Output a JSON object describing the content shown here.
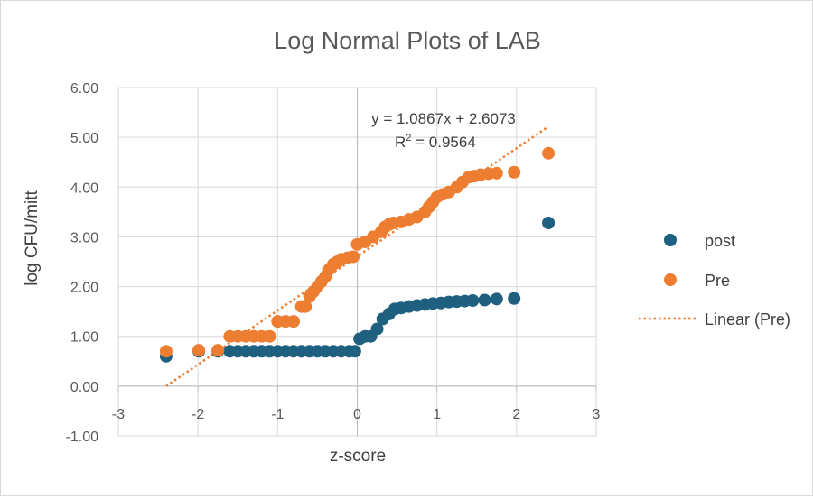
{
  "chart_data": {
    "type": "scatter",
    "title": "Log Normal Plots of LAB",
    "xlabel": "z-score",
    "ylabel": "log CFU/mitt",
    "xlim": [
      -3,
      3
    ],
    "ylim": [
      -1,
      6
    ],
    "x_ticks": [
      "-3",
      "-2",
      "-1",
      "0",
      "1",
      "2",
      "3"
    ],
    "y_ticks": [
      "-1.00",
      "0.00",
      "1.00",
      "2.00",
      "3.00",
      "4.00",
      "5.00",
      "6.00"
    ],
    "grid": true,
    "legend_position": "right",
    "series": [
      {
        "name": "post",
        "color": "#1f5f7f",
        "points": [
          [
            -2.4,
            0.6
          ],
          [
            -1.99,
            0.7
          ],
          [
            -1.75,
            0.7
          ],
          [
            -1.6,
            0.7
          ],
          [
            -1.5,
            0.7
          ],
          [
            -1.4,
            0.7
          ],
          [
            -1.3,
            0.7
          ],
          [
            -1.2,
            0.7
          ],
          [
            -1.1,
            0.7
          ],
          [
            -1.0,
            0.7
          ],
          [
            -0.9,
            0.7
          ],
          [
            -0.8,
            0.7
          ],
          [
            -0.7,
            0.7
          ],
          [
            -0.6,
            0.7
          ],
          [
            -0.5,
            0.7
          ],
          [
            -0.4,
            0.7
          ],
          [
            -0.3,
            0.7
          ],
          [
            -0.2,
            0.7
          ],
          [
            -0.1,
            0.7
          ],
          [
            -0.03,
            0.7
          ],
          [
            0.03,
            0.95
          ],
          [
            0.1,
            1.0
          ],
          [
            0.17,
            1.0
          ],
          [
            0.25,
            1.15
          ],
          [
            0.32,
            1.35
          ],
          [
            0.4,
            1.45
          ],
          [
            0.47,
            1.55
          ],
          [
            0.55,
            1.57
          ],
          [
            0.65,
            1.6
          ],
          [
            0.75,
            1.62
          ],
          [
            0.85,
            1.64
          ],
          [
            0.95,
            1.66
          ],
          [
            1.05,
            1.67
          ],
          [
            1.15,
            1.69
          ],
          [
            1.25,
            1.7
          ],
          [
            1.35,
            1.71
          ],
          [
            1.45,
            1.72
          ],
          [
            1.6,
            1.73
          ],
          [
            1.75,
            1.75
          ],
          [
            1.97,
            1.76
          ],
          [
            2.4,
            3.28
          ]
        ]
      },
      {
        "name": "Pre",
        "color": "#ed7d31",
        "points": [
          [
            -2.4,
            0.7
          ],
          [
            -1.99,
            0.72
          ],
          [
            -1.75,
            0.72
          ],
          [
            -1.6,
            1.0
          ],
          [
            -1.5,
            1.0
          ],
          [
            -1.4,
            1.0
          ],
          [
            -1.3,
            1.0
          ],
          [
            -1.2,
            1.0
          ],
          [
            -1.1,
            1.0
          ],
          [
            -1.0,
            1.3
          ],
          [
            -0.9,
            1.3
          ],
          [
            -0.8,
            1.3
          ],
          [
            -0.7,
            1.6
          ],
          [
            -0.65,
            1.6
          ],
          [
            -0.6,
            1.8
          ],
          [
            -0.55,
            1.9
          ],
          [
            -0.5,
            2.0
          ],
          [
            -0.45,
            2.1
          ],
          [
            -0.4,
            2.2
          ],
          [
            -0.35,
            2.35
          ],
          [
            -0.3,
            2.45
          ],
          [
            -0.25,
            2.5
          ],
          [
            -0.2,
            2.55
          ],
          [
            -0.12,
            2.58
          ],
          [
            -0.05,
            2.6
          ],
          [
            0.0,
            2.85
          ],
          [
            0.1,
            2.9
          ],
          [
            0.2,
            3.0
          ],
          [
            0.3,
            3.1
          ],
          [
            0.35,
            3.2
          ],
          [
            0.4,
            3.25
          ],
          [
            0.45,
            3.28
          ],
          [
            0.55,
            3.3
          ],
          [
            0.65,
            3.35
          ],
          [
            0.75,
            3.4
          ],
          [
            0.85,
            3.5
          ],
          [
            0.9,
            3.6
          ],
          [
            0.95,
            3.7
          ],
          [
            1.0,
            3.8
          ],
          [
            1.07,
            3.85
          ],
          [
            1.15,
            3.9
          ],
          [
            1.25,
            4.0
          ],
          [
            1.32,
            4.1
          ],
          [
            1.4,
            4.2
          ],
          [
            1.47,
            4.22
          ],
          [
            1.55,
            4.25
          ],
          [
            1.65,
            4.27
          ],
          [
            1.75,
            4.28
          ],
          [
            1.97,
            4.3
          ],
          [
            2.4,
            4.68
          ]
        ]
      }
    ],
    "trendline": {
      "name": "Linear (Pre)",
      "color": "#ed7d31",
      "slope": 1.0867,
      "intercept": 2.6073,
      "x_range": [
        -2.4,
        2.4
      ],
      "equation": "y = 1.0867x + 2.6073",
      "r2_label": "R",
      "r2_superscript": "2",
      "r2_value": " = 0.9564"
    }
  }
}
